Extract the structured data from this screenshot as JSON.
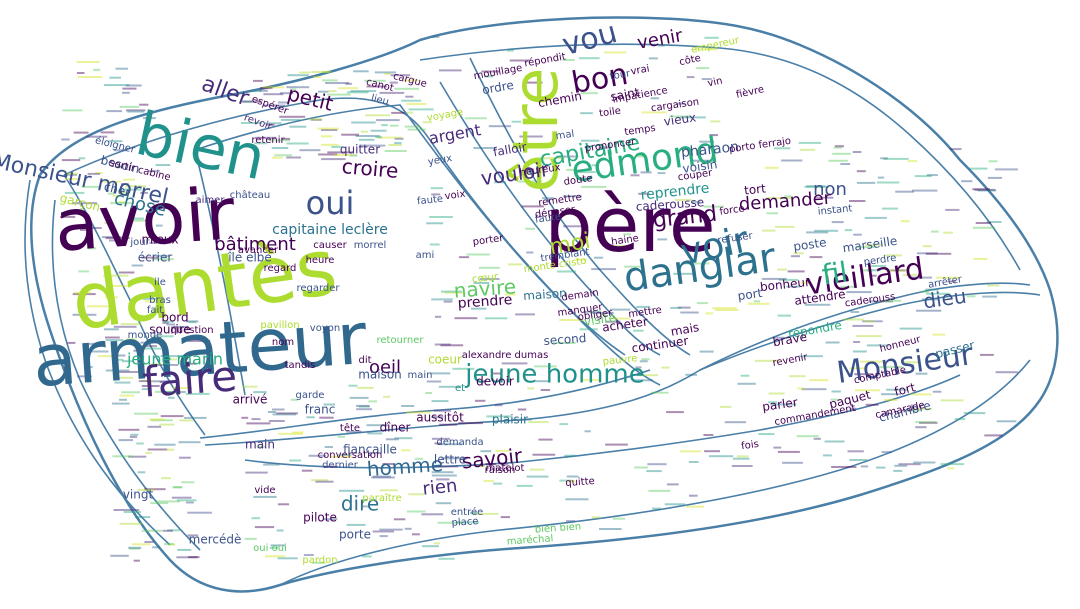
{
  "palette": [
    "#440154",
    "#472c7a",
    "#3b528b",
    "#2c728e",
    "#21918c",
    "#28ae80",
    "#5ec962",
    "#addc30",
    "#d2e21b"
  ],
  "outline_color": "#4a7fa8",
  "words": [
    {
      "text": "dantès",
      "color": "#addc30"
    },
    {
      "text": "avoir",
      "color": "#440154"
    },
    {
      "text": "armateur",
      "color": "#31688e"
    },
    {
      "text": "père",
      "color": "#440154"
    },
    {
      "text": "être",
      "color": "#addc30"
    },
    {
      "text": "bien",
      "color": "#21918c"
    },
    {
      "text": "danglar",
      "color": "#2c728e"
    },
    {
      "text": "Monsieur",
      "color": "#3b528b"
    },
    {
      "text": "faire",
      "color": "#472c7a"
    },
    {
      "text": "edmond",
      "color": "#28ae80"
    },
    {
      "text": "vieillard",
      "color": "#440154"
    },
    {
      "text": "voir",
      "color": "#2c728e"
    },
    {
      "text": "jeune homme",
      "color": "#21918c"
    },
    {
      "text": "bon",
      "color": "#440154"
    },
    {
      "text": "vou",
      "color": "#3b528b"
    },
    {
      "text": "oui",
      "color": "#3b528b"
    },
    {
      "text": "capitaine",
      "color": "#28ae80"
    },
    {
      "text": "Monsieur morrel",
      "color": "#3b528b"
    },
    {
      "text": "aller",
      "color": "#472c7a"
    },
    {
      "text": "petit",
      "color": "#440154"
    },
    {
      "text": "croire",
      "color": "#440154"
    },
    {
      "text": "chose",
      "color": "#2c728e"
    },
    {
      "text": "fil",
      "color": "#28ae80"
    },
    {
      "text": "vouloir",
      "color": "#472c7a"
    },
    {
      "text": "grand",
      "color": "#440154"
    },
    {
      "text": "moi",
      "color": "#addc30"
    },
    {
      "text": "non",
      "color": "#3b528b"
    },
    {
      "text": "demander",
      "color": "#440154"
    },
    {
      "text": "navire",
      "color": "#5ec962"
    },
    {
      "text": "dieu",
      "color": "#3b528b"
    },
    {
      "text": "homme",
      "color": "#31688e"
    },
    {
      "text": "rien",
      "color": "#472c7a"
    },
    {
      "text": "savoir",
      "color": "#440154"
    },
    {
      "text": "dire",
      "color": "#2c728e"
    },
    {
      "text": "bâtiment",
      "color": "#440154"
    },
    {
      "text": "capitaine leclère",
      "color": "#2c728e"
    },
    {
      "text": "oeil",
      "color": "#440154"
    },
    {
      "text": "argent",
      "color": "#472c7a"
    },
    {
      "text": "venir",
      "color": "#440154"
    },
    {
      "text": "jeune marin",
      "color": "#28ae80"
    },
    {
      "text": "prendre",
      "color": "#440154"
    },
    {
      "text": "reprendre",
      "color": "#21918c"
    },
    {
      "text": "caderousse",
      "color": "#472c7a"
    },
    {
      "text": "marseille",
      "color": "#3b528b"
    },
    {
      "text": "pharaon",
      "color": "#3b528b"
    },
    {
      "text": "sourire",
      "color": "#440154"
    },
    {
      "text": "besoin",
      "color": "#3b528b"
    },
    {
      "text": "lettre",
      "color": "#3b528b"
    },
    {
      "text": "vieux",
      "color": "#472c7a"
    },
    {
      "text": "maison",
      "color": "#2c728e"
    },
    {
      "text": "porte",
      "color": "#3b528b"
    },
    {
      "text": "main",
      "color": "#472c7a"
    },
    {
      "text": "mercédè",
      "color": "#3b528b"
    },
    {
      "text": "chambre",
      "color": "#3b528b"
    },
    {
      "text": "voisin",
      "color": "#3b528b"
    },
    {
      "text": "cher",
      "color": "#3b528b"
    },
    {
      "text": "quitter",
      "color": "#472c7a"
    },
    {
      "text": "dîner",
      "color": "#440154"
    },
    {
      "text": "vingt",
      "color": "#3b528b"
    },
    {
      "text": "passer",
      "color": "#2c728e"
    },
    {
      "text": "port",
      "color": "#3b528b"
    },
    {
      "text": "poste",
      "color": "#3b528b"
    },
    {
      "text": "bord",
      "color": "#440154"
    },
    {
      "text": "regarder",
      "color": "#3b528b"
    },
    {
      "text": "devoir",
      "color": "#440154"
    },
    {
      "text": "plaisir",
      "color": "#2c728e"
    },
    {
      "text": "question",
      "color": "#440154"
    },
    {
      "text": "mieux",
      "color": "#440154"
    },
    {
      "text": "retenir",
      "color": "#440154"
    },
    {
      "text": "ordre",
      "color": "#3b528b"
    },
    {
      "text": "mouillage",
      "color": "#440154"
    },
    {
      "text": "falloir",
      "color": "#472c7a"
    },
    {
      "text": "pilote",
      "color": "#440154"
    },
    {
      "text": "matelot",
      "color": "#440154"
    },
    {
      "text": "fort",
      "color": "#440154"
    },
    {
      "text": "paquet",
      "color": "#440154"
    },
    {
      "text": "mais",
      "color": "#440154"
    },
    {
      "text": "parler",
      "color": "#440154"
    },
    {
      "text": "maison",
      "color": "#3b528b"
    },
    {
      "text": "île elbe",
      "color": "#3b528b"
    },
    {
      "text": "château",
      "color": "#3b528b"
    },
    {
      "text": "refuser",
      "color": "#3b528b"
    },
    {
      "text": "perdre",
      "color": "#3b528b"
    },
    {
      "text": "instant",
      "color": "#3b528b"
    },
    {
      "text": "arrêter",
      "color": "#3b528b"
    },
    {
      "text": "écrier",
      "color": "#3b528b"
    },
    {
      "text": "fiançaille",
      "color": "#3b528b"
    },
    {
      "text": "franc",
      "color": "#3b528b"
    },
    {
      "text": "aussitôt",
      "color": "#440154"
    },
    {
      "text": "répondit",
      "color": "#440154"
    },
    {
      "text": "mal",
      "color": "#3b528b"
    },
    {
      "text": "attendre",
      "color": "#440154"
    },
    {
      "text": "bonheur",
      "color": "#440154"
    },
    {
      "text": "répondre",
      "color": "#28ae80"
    },
    {
      "text": "continuer",
      "color": "#440154"
    },
    {
      "text": "acheter",
      "color": "#440154"
    },
    {
      "text": "second",
      "color": "#3b528b"
    },
    {
      "text": "ile",
      "color": "#3b528b"
    },
    {
      "text": "bras",
      "color": "#3b528b"
    },
    {
      "text": "fait",
      "color": "#3b528b"
    },
    {
      "text": "morrel",
      "color": "#3b528b"
    },
    {
      "text": "mettre",
      "color": "#440154"
    },
    {
      "text": "arrivé",
      "color": "#440154"
    },
    {
      "text": "entrée",
      "color": "#3b528b"
    },
    {
      "text": "garçon",
      "color": "#addc30"
    },
    {
      "text": "retourner",
      "color": "#5ec962"
    },
    {
      "text": "coeur",
      "color": "#addc30"
    },
    {
      "text": "et",
      "color": "#21918c"
    },
    {
      "text": "dit",
      "color": "#440154"
    },
    {
      "text": "tête",
      "color": "#440154"
    },
    {
      "text": "empereur",
      "color": "#addc30"
    },
    {
      "text": "caderouss",
      "color": "#440154"
    },
    {
      "text": "revoir",
      "color": "#472c7a"
    },
    {
      "text": "yeux",
      "color": "#3b528b"
    },
    {
      "text": "jour",
      "color": "#3b528b"
    },
    {
      "text": "voyage",
      "color": "#addc30"
    },
    {
      "text": "brave",
      "color": "#440154"
    },
    {
      "text": "honneur",
      "color": "#440154"
    },
    {
      "text": "revenir",
      "color": "#440154"
    },
    {
      "text": "tort",
      "color": "#440154"
    },
    {
      "text": "visite",
      "color": "#5ec962"
    },
    {
      "text": "heureux",
      "color": "#440154"
    },
    {
      "text": "porter",
      "color": "#440154"
    },
    {
      "text": "cœur",
      "color": "#addc30"
    },
    {
      "text": "faute",
      "color": "#3b528b"
    },
    {
      "text": "voix",
      "color": "#440154"
    },
    {
      "text": "ami",
      "color": "#3b528b"
    },
    {
      "text": "fois",
      "color": "#440154"
    },
    {
      "text": "comptable",
      "color": "#440154"
    },
    {
      "text": "camarade",
      "color": "#440154"
    },
    {
      "text": "commandement",
      "color": "#440154"
    },
    {
      "text": "demanda",
      "color": "#3b528b"
    },
    {
      "text": "dernier",
      "color": "#3b528b"
    },
    {
      "text": "conversation",
      "color": "#440154"
    },
    {
      "text": "espérer",
      "color": "#440154"
    },
    {
      "text": "vide",
      "color": "#440154"
    },
    {
      "text": "nom",
      "color": "#440154"
    },
    {
      "text": "faute",
      "color": "#3b528b"
    },
    {
      "text": "place",
      "color": "#3b528b"
    },
    {
      "text": "lieu",
      "color": "#3b528b"
    },
    {
      "text": "sortir cabine",
      "color": "#440154"
    },
    {
      "text": "maréchal",
      "color": "#5ec962"
    },
    {
      "text": "bien bien",
      "color": "#5ec962"
    },
    {
      "text": "manquer",
      "color": "#440154"
    },
    {
      "text": "voyon",
      "color": "#3b528b"
    },
    {
      "text": "tandis",
      "color": "#440154"
    },
    {
      "text": "aimer",
      "color": "#472c7a"
    },
    {
      "text": "éloigner",
      "color": "#3b528b"
    },
    {
      "text": "monde",
      "color": "#3b528b"
    },
    {
      "text": "cargue",
      "color": "#440154"
    },
    {
      "text": "canot",
      "color": "#440154"
    },
    {
      "text": "heure",
      "color": "#440154"
    },
    {
      "text": "pavillon",
      "color": "#addc30"
    },
    {
      "text": "pardon",
      "color": "#addc30"
    },
    {
      "text": "quitte",
      "color": "#440154"
    },
    {
      "text": "saint",
      "color": "#440154"
    },
    {
      "text": "chemin",
      "color": "#440154"
    },
    {
      "text": "alexandre dumas",
      "color": "#440154"
    },
    {
      "text": "paraître",
      "color": "#addc30"
    },
    {
      "text": "garde",
      "color": "#3b528b"
    },
    {
      "text": "oui oui",
      "color": "#5ec962"
    },
    {
      "text": "main",
      "color": "#3b528b"
    },
    {
      "text": "raison",
      "color": "#440154"
    },
    {
      "text": "pauvre",
      "color": "#addc30"
    },
    {
      "text": "tour",
      "color": "#3b528b"
    },
    {
      "text": "demain",
      "color": "#440154"
    },
    {
      "text": "cargaison",
      "color": "#440154"
    },
    {
      "text": "force",
      "color": "#440154"
    },
    {
      "text": "remettre",
      "color": "#440154"
    },
    {
      "text": "obliger",
      "color": "#440154"
    },
    {
      "text": "doute",
      "color": "#440154"
    },
    {
      "text": "tremblant",
      "color": "#3b528b"
    },
    {
      "text": "monte cristo",
      "color": "#addc30"
    },
    {
      "text": "impatience",
      "color": "#440154"
    },
    {
      "text": "vrai",
      "color": "#440154"
    },
    {
      "text": "vin",
      "color": "#440154"
    },
    {
      "text": "temps",
      "color": "#440154"
    },
    {
      "text": "porto ferrajo",
      "color": "#440154"
    },
    {
      "text": "fièvre",
      "color": "#440154"
    },
    {
      "text": "déposer",
      "color": "#440154"
    },
    {
      "text": "côte",
      "color": "#440154"
    },
    {
      "text": "couper",
      "color": "#440154"
    },
    {
      "text": "toile",
      "color": "#440154"
    },
    {
      "text": "prononcer",
      "color": "#440154"
    },
    {
      "text": "haine",
      "color": "#440154"
    },
    {
      "text": "avancer",
      "color": "#440154"
    },
    {
      "text": "causer",
      "color": "#440154"
    },
    {
      "text": "regard",
      "color": "#440154"
    }
  ]
}
